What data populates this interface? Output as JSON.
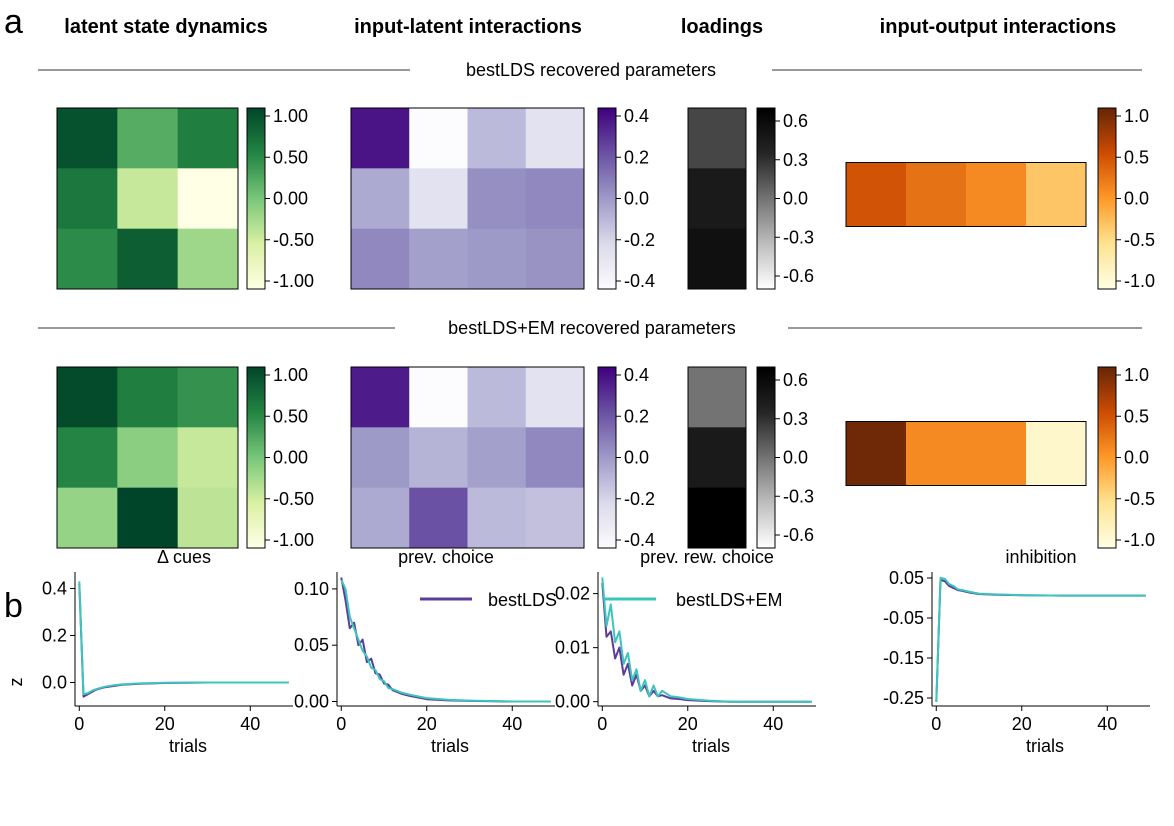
{
  "panel_a": {
    "label": "a",
    "column_headers": [
      "latent state dynamics",
      "input-latent interactions",
      "loadings",
      "input-output interactions"
    ],
    "rows": [
      {
        "title": "bestLDS recovered parameters",
        "A": [
          [
            0.9,
            0.2,
            0.55
          ],
          [
            0.6,
            -0.4,
            -1.0
          ],
          [
            0.45,
            0.8,
            -0.2
          ]
        ],
        "B": [
          [
            0.35,
            -0.4,
            -0.1,
            -0.25
          ],
          [
            -0.05,
            -0.25,
            0.03,
            0.05
          ],
          [
            0.05,
            -0.02,
            0.0,
            0.02
          ]
        ],
        "C": [
          [
            0.2
          ],
          [
            0.45
          ],
          [
            0.55
          ]
        ],
        "D": [
          [
            0.45,
            0.25,
            0.1,
            -0.3
          ]
        ]
      },
      {
        "title": "bestLDS+EM recovered parameters",
        "A": [
          [
            0.95,
            0.55,
            0.4
          ],
          [
            0.5,
            -0.1,
            -0.4
          ],
          [
            -0.15,
            1.0,
            -0.35
          ]
        ],
        "B": [
          [
            0.33,
            -0.4,
            -0.1,
            -0.25
          ],
          [
            0.0,
            -0.08,
            -0.02,
            0.05
          ],
          [
            -0.05,
            0.2,
            -0.1,
            -0.12
          ]
        ],
        "C": [
          [
            0.0
          ],
          [
            0.45
          ],
          [
            0.75
          ]
        ],
        "D": [
          [
            0.95,
            0.1,
            0.1,
            -0.85
          ]
        ]
      }
    ],
    "colorbars": {
      "A": {
        "ticks": [
          "1.00",
          "0.50",
          "0.00",
          "-0.50",
          "-1.00"
        ],
        "range": [
          -1,
          1
        ],
        "colors": [
          "#ffffe5",
          "#d9f0a3",
          "#78c679",
          "#238443",
          "#004529"
        ]
      },
      "B": {
        "ticks": [
          "0.4",
          "0.2",
          "0.0",
          "-0.2",
          "-0.4"
        ],
        "range": [
          -0.4,
          0.4
        ],
        "colors": [
          "#fcfbfd",
          "#dadaeb",
          "#9e9ac8",
          "#6a51a3",
          "#3f007d"
        ]
      },
      "C": {
        "ticks": [
          "0.6",
          "0.3",
          "0.0",
          "-0.3",
          "-0.6"
        ],
        "range": [
          -0.7,
          0.7
        ],
        "colors": [
          "#ffffff",
          "#bdbdbd",
          "#737373",
          "#252525",
          "#000000"
        ]
      },
      "D": {
        "ticks": [
          "1.0",
          "0.5",
          "0.0",
          "-0.5",
          "-1.0"
        ],
        "range": [
          -1,
          1
        ],
        "colors": [
          "#ffffe5",
          "#fee391",
          "#fe9929",
          "#cc4c02",
          "#662506"
        ]
      }
    }
  },
  "panel_b": {
    "label": "b",
    "legend": [
      "bestLDS",
      "bestLDS+EM"
    ],
    "series_colors": [
      "#5b3c9b",
      "#3cc4bd"
    ],
    "ylabel": "z",
    "xlabel": "trials",
    "xticks": [
      "0",
      "20",
      "40"
    ],
    "xlim": [
      -1,
      50
    ],
    "subplots": [
      {
        "title": "Δ cues",
        "ylim": [
          -0.1,
          0.47
        ],
        "yticks": [
          {
            "v": 0.4,
            "t": "0.4"
          },
          {
            "v": 0.2,
            "t": "0.2"
          },
          {
            "v": 0.0,
            "t": "0.0"
          }
        ],
        "series": [
          {
            "name": "bestLDS",
            "x": [
              0,
              1,
              2,
              3,
              4,
              6,
              8,
              10,
              14,
              20,
              30,
              40,
              49
            ],
            "y": [
              0.42,
              -0.06,
              -0.05,
              -0.04,
              -0.03,
              -0.02,
              -0.015,
              -0.01,
              -0.005,
              -0.002,
              0,
              0,
              0
            ]
          },
          {
            "name": "bestLDS+EM",
            "x": [
              0,
              1,
              2,
              3,
              4,
              6,
              8,
              10,
              14,
              20,
              30,
              40,
              49
            ],
            "y": [
              0.43,
              -0.05,
              -0.045,
              -0.035,
              -0.028,
              -0.018,
              -0.012,
              -0.008,
              -0.004,
              -0.001,
              0,
              0,
              0
            ]
          }
        ]
      },
      {
        "title": "prev. choice",
        "ylim": [
          -0.004,
          0.115
        ],
        "yticks": [
          {
            "v": 0.1,
            "t": "0.10"
          },
          {
            "v": 0.05,
            "t": "0.05"
          },
          {
            "v": 0.0,
            "t": "0.00"
          }
        ],
        "series": [
          {
            "name": "bestLDS",
            "x": [
              0,
              1,
              2,
              3,
              4,
              5,
              6,
              7,
              8,
              9,
              10,
              11,
              12,
              14,
              16,
              20,
              25,
              30,
              40,
              49
            ],
            "y": [
              0.11,
              0.09,
              0.065,
              0.07,
              0.05,
              0.055,
              0.035,
              0.038,
              0.025,
              0.024,
              0.016,
              0.015,
              0.01,
              0.007,
              0.005,
              0.002,
              0.001,
              0.0005,
              0,
              0
            ]
          },
          {
            "name": "bestLDS+EM",
            "x": [
              0,
              1,
              2,
              3,
              4,
              5,
              6,
              7,
              8,
              9,
              10,
              11,
              12,
              14,
              16,
              20,
              25,
              30,
              40,
              49
            ],
            "y": [
              0.108,
              0.1,
              0.075,
              0.065,
              0.055,
              0.045,
              0.04,
              0.03,
              0.028,
              0.02,
              0.018,
              0.012,
              0.011,
              0.008,
              0.006,
              0.003,
              0.0015,
              0.0008,
              0,
              0
            ]
          }
        ]
      },
      {
        "title": "prev. rew. choice",
        "ylim": [
          -0.0008,
          0.024
        ],
        "yticks": [
          {
            "v": 0.02,
            "t": "0.02"
          },
          {
            "v": 0.01,
            "t": "0.01"
          },
          {
            "v": 0.0,
            "t": "0.00"
          }
        ],
        "series": [
          {
            "name": "bestLDS",
            "x": [
              0,
              1,
              2,
              3,
              4,
              5,
              6,
              7,
              8,
              9,
              10,
              11,
              12,
              13,
              14,
              16,
              18,
              20,
              25,
              30,
              40,
              49
            ],
            "y": [
              0.022,
              0.012,
              0.013,
              0.008,
              0.01,
              0.005,
              0.007,
              0.003,
              0.005,
              0.002,
              0.003,
              0.001,
              0.002,
              0.001,
              0.0012,
              0.0006,
              0.0005,
              0.0003,
              0.0001,
              0,
              0,
              0
            ]
          },
          {
            "name": "bestLDS+EM",
            "x": [
              0,
              1,
              2,
              3,
              4,
              5,
              6,
              7,
              8,
              9,
              10,
              11,
              12,
              13,
              14,
              16,
              18,
              20,
              25,
              30,
              40,
              49
            ],
            "y": [
              0.023,
              0.014,
              0.018,
              0.011,
              0.013,
              0.007,
              0.009,
              0.004,
              0.006,
              0.002,
              0.004,
              0.001,
              0.003,
              0.001,
              0.002,
              0.001,
              0.0008,
              0.0005,
              0.0002,
              0,
              0,
              0
            ]
          }
        ]
      },
      {
        "title": "inhibition",
        "ylim": [
          -0.27,
          0.065
        ],
        "yticks": [
          {
            "v": 0.05,
            "t": "0.05"
          },
          {
            "v": -0.05,
            "t": "-0.05"
          },
          {
            "v": -0.15,
            "t": "-0.15"
          },
          {
            "v": -0.25,
            "t": "-0.25"
          }
        ],
        "series": [
          {
            "name": "bestLDS",
            "x": [
              0,
              1,
              2,
              3,
              4,
              5,
              6,
              8,
              10,
              14,
              20,
              30,
              40,
              49
            ],
            "y": [
              -0.26,
              0.045,
              0.042,
              0.03,
              0.025,
              0.02,
              0.018,
              0.013,
              0.01,
              0.008,
              0.007,
              0.006,
              0.006,
              0.006
            ]
          },
          {
            "name": "bestLDS+EM",
            "x": [
              0,
              1,
              2,
              3,
              4,
              5,
              6,
              8,
              10,
              14,
              20,
              30,
              40,
              49
            ],
            "y": [
              -0.26,
              0.05,
              0.048,
              0.035,
              0.03,
              0.022,
              0.02,
              0.015,
              0.011,
              0.009,
              0.007,
              0.006,
              0.006,
              0.006
            ]
          }
        ]
      }
    ]
  }
}
